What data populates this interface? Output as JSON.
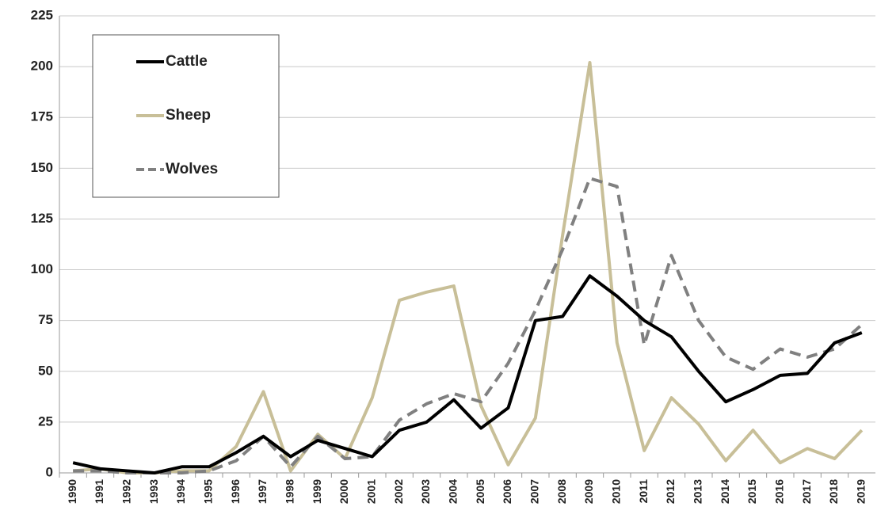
{
  "chart_data": {
    "type": "line",
    "categories": [
      "1990",
      "1991",
      "1992",
      "1993",
      "1994",
      "1995",
      "1996",
      "1997",
      "1998",
      "1999",
      "2000",
      "2001",
      "2002",
      "2003",
      "2004",
      "2005",
      "2006",
      "2007",
      "2008",
      "2009",
      "2010",
      "2011",
      "2012",
      "2013",
      "2014",
      "2015",
      "2016",
      "2017",
      "2018",
      "2019"
    ],
    "series": [
      {
        "name": "Cattle",
        "color": "#000000",
        "dashed": false,
        "values": [
          5,
          2,
          1,
          0,
          3,
          3,
          10,
          18,
          8,
          16,
          12,
          8,
          21,
          25,
          36,
          22,
          32,
          75,
          77,
          97,
          87,
          75,
          67,
          50,
          35,
          41,
          48,
          49,
          64,
          69
        ]
      },
      {
        "name": "Sheep",
        "color": "#c8bf98",
        "dashed": false,
        "values": [
          1,
          2,
          0,
          0,
          1,
          1,
          13,
          40,
          1,
          19,
          7,
          37,
          85,
          89,
          92,
          33,
          4,
          27,
          117,
          202,
          64,
          11,
          37,
          24,
          6,
          21,
          5,
          12,
          7,
          21
        ]
      },
      {
        "name": "Wolves",
        "color": "#808080",
        "dashed": true,
        "values": [
          1,
          1,
          0,
          0,
          0,
          1,
          6,
          18,
          3,
          18,
          7,
          8,
          26,
          34,
          39,
          35,
          54,
          80,
          110,
          145,
          141,
          63,
          107,
          75,
          57,
          51,
          61,
          57,
          61,
          73
        ]
      }
    ],
    "ylim": [
      0,
      225
    ],
    "yticks": [
      0,
      25,
      50,
      75,
      100,
      125,
      150,
      175,
      200,
      225
    ],
    "grid": true,
    "legend": "top-left"
  }
}
